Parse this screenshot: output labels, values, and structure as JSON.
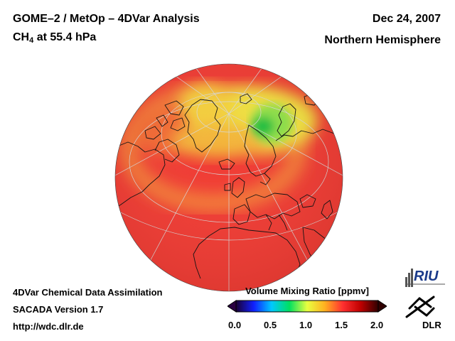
{
  "header": {
    "title": "GOME–2 / MetOp – 4DVar Analysis",
    "species": "CH",
    "species_subscript": "4",
    "level": "at 55.4 hPa",
    "date": "Dec 24, 2007",
    "region": "Northern Hemisphere"
  },
  "footer": {
    "line1": "4DVar Chemical Data Assimilation",
    "line2": "SACADA Version 1.7",
    "line3": "http://wdc.dlr.de"
  },
  "colorbar": {
    "label": "Volume Mixing Ratio [ppmv]",
    "min": 0.0,
    "max": 2.0,
    "ticks": [
      "0.0",
      "0.5",
      "1.0",
      "1.5",
      "2.0"
    ],
    "colors": [
      "#1a0033",
      "#1020ff",
      "#00c8ff",
      "#00e060",
      "#e8ff40",
      "#ffb020",
      "#ff3030",
      "#c00000",
      "#300000"
    ]
  },
  "map": {
    "projection": "orthographic-north-polar",
    "background_value_ppmv": 1.6,
    "high_value_ppmv": 1.65,
    "low_value_ppmv": 1.1,
    "land_outline_color": "#000000",
    "grid_color": "#d8d8d8"
  },
  "logos": {
    "riu": "RIU",
    "dlr": "DLR"
  }
}
